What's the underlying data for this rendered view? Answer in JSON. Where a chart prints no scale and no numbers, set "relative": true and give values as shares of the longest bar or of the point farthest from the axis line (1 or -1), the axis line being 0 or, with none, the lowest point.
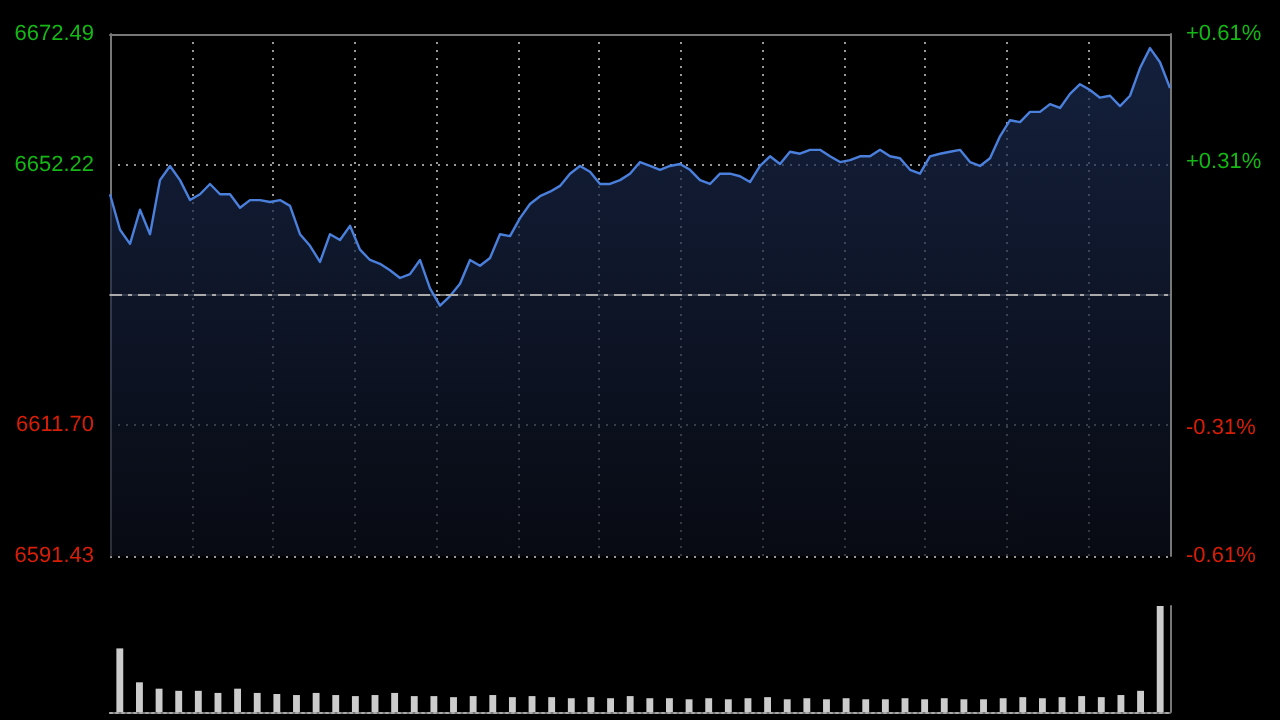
{
  "chart_data": [
    {
      "type": "area",
      "categories": [
        null,
        null,
        null,
        null,
        null,
        null,
        null,
        null,
        null,
        null,
        null,
        null,
        null,
        null,
        null,
        null,
        null,
        null,
        null,
        null,
        null,
        null,
        null,
        null,
        null,
        null,
        null,
        null,
        null,
        null,
        null,
        null,
        null,
        null,
        null,
        null,
        null,
        null,
        null,
        null,
        null,
        null,
        null,
        null,
        null,
        null,
        null,
        null,
        null,
        null,
        null,
        null,
        null,
        null,
        null,
        null,
        null,
        null,
        null,
        null,
        null,
        null,
        null,
        null,
        null,
        null,
        null,
        null,
        null,
        null,
        null,
        null,
        null,
        null,
        null,
        null,
        null,
        null,
        null,
        null,
        null,
        null,
        null,
        null,
        null,
        null,
        null,
        null,
        null,
        null,
        null,
        null,
        null,
        null,
        null,
        null,
        null,
        null,
        null,
        null,
        null,
        null,
        null,
        null,
        null,
        null,
        null
      ],
      "series": [
        {
          "color": "#4a80dc",
          "values": [
            6647.6,
            6642.1,
            6639.9,
            6645.2,
            6641.4,
            6649.8,
            6652.0,
            6649.8,
            6646.7,
            6647.6,
            6649.2,
            6647.6,
            6647.6,
            6645.5,
            6646.7,
            6646.7,
            6646.4,
            6646.7,
            6645.8,
            6641.4,
            6639.6,
            6637.1,
            6641.4,
            6640.5,
            6642.7,
            6639.0,
            6637.4,
            6636.8,
            6635.8,
            6634.6,
            6635.2,
            6637.4,
            6633.0,
            6630.3,
            6631.8,
            6633.7,
            6637.4,
            6636.5,
            6637.7,
            6641.4,
            6641.1,
            6643.9,
            6646.1,
            6647.3,
            6648.0,
            6648.9,
            6650.8,
            6652.0,
            6651.1,
            6649.2,
            6649.2,
            6649.8,
            6650.8,
            6652.6,
            6652.0,
            6651.4,
            6652.0,
            6652.3,
            6651.4,
            6649.8,
            6649.2,
            6650.8,
            6650.8,
            6650.4,
            6649.5,
            6652.0,
            6653.5,
            6652.3,
            6654.2,
            6653.9,
            6654.5,
            6654.5,
            6653.5,
            6652.6,
            6652.9,
            6653.5,
            6653.5,
            6654.5,
            6653.5,
            6653.2,
            6651.4,
            6650.8,
            6653.5,
            6653.9,
            6654.2,
            6654.5,
            6652.6,
            6652.0,
            6653.2,
            6656.6,
            6659.1,
            6658.8,
            6660.4,
            6660.4,
            6661.6,
            6661.0,
            6663.2,
            6664.7,
            6663.8,
            6662.6,
            6662.9,
            6661.3,
            6662.9,
            6667.2,
            6670.3,
            6668.1,
            6664.1
          ]
        }
      ],
      "ylim": [
        6591.43,
        6672.49
      ],
      "yticks": [
        6591.43,
        {
          "value": 6611.7,
          "label": "6611.70"
        },
        6652.22,
        6672.49
      ],
      "y2lim": [
        -0.61,
        0.61
      ],
      "y2ticks": [
        {
          "value": -0.61,
          "label": "-0.61%"
        },
        {
          "value": -0.31,
          "label": "-0.31%"
        },
        {
          "value": 0.31,
          "label": "+0.31%"
        },
        {
          "value": 0.61,
          "label": "+0.61%"
        }
      ],
      "ref_lines": [
        {
          "axis": "y",
          "value": 6631.96,
          "line_style": "dashed",
          "color": "#aaaaaa"
        }
      ],
      "grid": true,
      "line_style": "solid"
    },
    {
      "type": "bar",
      "relative": true,
      "grid": false,
      "categories": [
        null,
        null,
        null,
        null,
        null,
        null,
        null,
        null,
        null,
        null,
        null,
        null,
        null,
        null,
        null,
        null,
        null,
        null,
        null,
        null,
        null,
        null,
        null,
        null,
        null,
        null,
        null,
        null,
        null,
        null,
        null,
        null,
        null,
        null,
        null,
        null,
        null,
        null,
        null,
        null,
        null,
        null,
        null,
        null,
        null,
        null,
        null,
        null,
        null,
        null,
        null,
        null,
        null,
        null
      ],
      "series": [
        {
          "color": "#cccccc",
          "values": [
            0.6,
            0.28,
            0.22,
            0.2,
            0.2,
            0.18,
            0.22,
            0.18,
            0.17,
            0.16,
            0.18,
            0.16,
            0.15,
            0.16,
            0.18,
            0.15,
            0.15,
            0.14,
            0.15,
            0.16,
            0.14,
            0.15,
            0.14,
            0.13,
            0.14,
            0.13,
            0.15,
            0.13,
            0.13,
            0.12,
            0.13,
            0.12,
            0.13,
            0.14,
            0.12,
            0.13,
            0.12,
            0.13,
            0.12,
            0.12,
            0.13,
            0.12,
            0.13,
            0.12,
            0.12,
            0.13,
            0.14,
            0.13,
            0.14,
            0.15,
            0.14,
            0.16,
            0.2,
            1
          ]
        }
      ]
    }
  ]
}
